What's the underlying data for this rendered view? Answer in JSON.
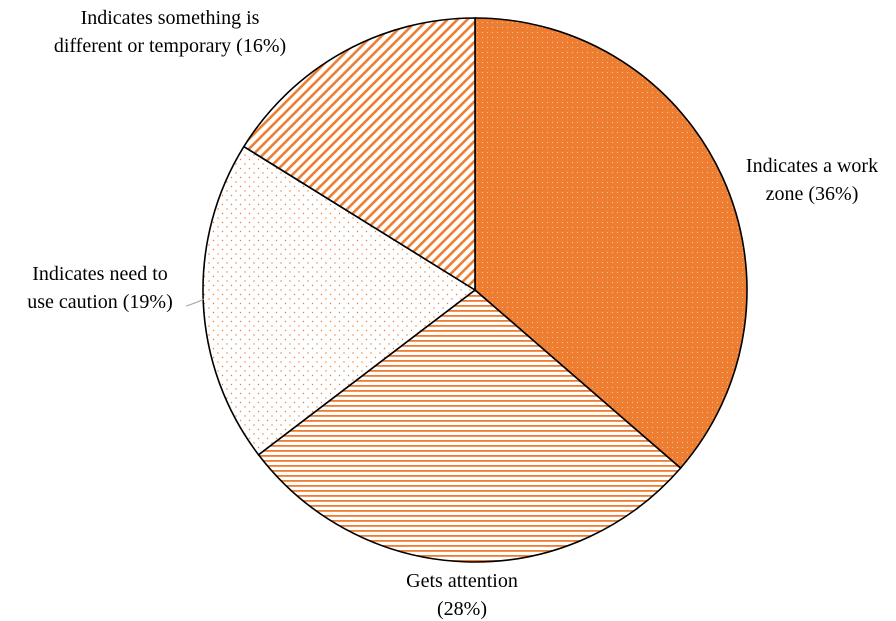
{
  "chart_data": {
    "type": "pie",
    "title": "",
    "start_angle_deg": 0,
    "direction": "clockwise",
    "slices": [
      {
        "label_lines": [
          "Indicates a work",
          "zone (36%)"
        ],
        "value": 36,
        "pattern": "dots-dense",
        "color": "#ED7D31"
      },
      {
        "label_lines": [
          "Gets attention",
          "(28%)"
        ],
        "value": 28,
        "pattern": "horizontal-lines",
        "color": "#ED7D31"
      },
      {
        "label_lines": [
          "Indicates need to",
          "use caution (19%)"
        ],
        "value": 19,
        "pattern": "dots-sparse",
        "color": "#ED7D31"
      },
      {
        "label_lines": [
          "Indicates something is",
          "different or temporary (16%)"
        ],
        "value": 16,
        "pattern": "diagonal-lines",
        "color": "#ED7D31"
      }
    ],
    "legend": "none",
    "colors": {
      "accent": "#ED7D31",
      "outline": "#000000",
      "background": "#FFFFFF"
    }
  }
}
